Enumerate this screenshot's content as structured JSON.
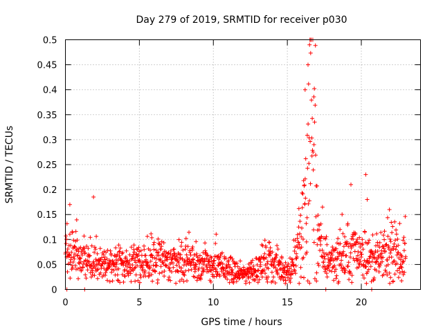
{
  "chart_data": {
    "type": "scatter",
    "title": "Day 279 of 2019, SRMTID for receiver p030",
    "xlabel": "GPS time / hours",
    "ylabel": "SRMTID / TECUs",
    "xlim": [
      0,
      24
    ],
    "ylim": [
      0,
      0.5
    ],
    "x_ticks": [
      0,
      5,
      10,
      15,
      20
    ],
    "x_tick_labels": [
      "0",
      "5",
      "10",
      "15",
      "20"
    ],
    "y_ticks": [
      0,
      0.05,
      0.1,
      0.15,
      0.2,
      0.25,
      0.3,
      0.35,
      0.4,
      0.45,
      0.5
    ],
    "y_tick_labels": [
      "0",
      "0.05",
      "0.1",
      "0.15",
      "0.2",
      "0.25",
      "0.3",
      "0.35",
      "0.4",
      "0.45",
      "0.5"
    ],
    "grid": true,
    "marker": "+",
    "series": [
      {
        "name": "SRMTID",
        "color": "#ff0000",
        "profile_hours": [
          0,
          0.5,
          1,
          1.5,
          2,
          2.5,
          3,
          3.5,
          4,
          4.5,
          5,
          5.5,
          6,
          6.5,
          7,
          7.5,
          8,
          8.5,
          9,
          9.5,
          10,
          10.5,
          11,
          11.5,
          12,
          12.5,
          13,
          13.5,
          14,
          14.5,
          15,
          15.25,
          15.5,
          15.75,
          16,
          16.2,
          16.4,
          16.6,
          16.8,
          17,
          17.25,
          17.5,
          18,
          18.5,
          19,
          19.5,
          20,
          20.5,
          21,
          21.5,
          22,
          22.5,
          23
        ],
        "profile_typical": [
          0.065,
          0.08,
          0.07,
          0.055,
          0.055,
          0.05,
          0.045,
          0.05,
          0.05,
          0.05,
          0.055,
          0.055,
          0.06,
          0.055,
          0.055,
          0.06,
          0.055,
          0.055,
          0.05,
          0.05,
          0.045,
          0.045,
          0.04,
          0.035,
          0.03,
          0.035,
          0.045,
          0.055,
          0.05,
          0.045,
          0.035,
          0.04,
          0.07,
          0.09,
          0.11,
          0.18,
          0.28,
          0.35,
          0.28,
          0.15,
          0.08,
          0.06,
          0.06,
          0.065,
          0.07,
          0.08,
          0.075,
          0.06,
          0.06,
          0.065,
          0.07,
          0.065,
          0.06
        ],
        "notable_points": [
          {
            "x": 0.3,
            "y": 0.17
          },
          {
            "x": 1.9,
            "y": 0.185
          },
          {
            "x": 1.3,
            "y": 0.0
          },
          {
            "x": 0.1,
            "y": 0.0
          },
          {
            "x": 16.5,
            "y": 0.49
          },
          {
            "x": 16.4,
            "y": 0.45
          },
          {
            "x": 16.2,
            "y": 0.4
          },
          {
            "x": 16.8,
            "y": 0.29
          },
          {
            "x": 17.6,
            "y": 0.0
          },
          {
            "x": 19.3,
            "y": 0.21
          },
          {
            "x": 20.3,
            "y": 0.23
          },
          {
            "x": 20.4,
            "y": 0.18
          },
          {
            "x": 20.7,
            "y": 0.0
          },
          {
            "x": 21.9,
            "y": 0.16
          }
        ]
      }
    ]
  }
}
